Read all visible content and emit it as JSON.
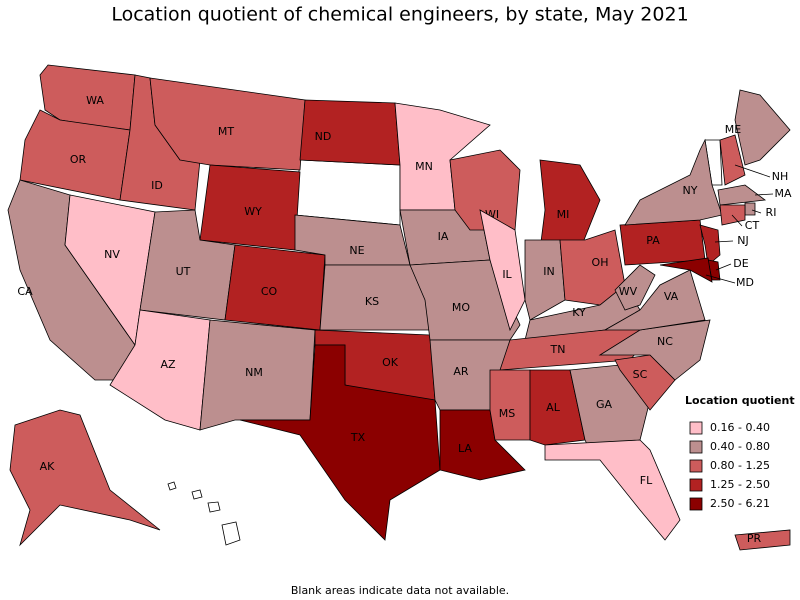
{
  "title": "Location quotient of chemical engineers, by state, May 2021",
  "legend": {
    "title": "Location quotient",
    "items": [
      {
        "label": "0.16 - 0.40",
        "color": "#ffbec8"
      },
      {
        "label": "0.40 - 0.80",
        "color": "#bc8f8f"
      },
      {
        "label": "0.80 - 1.25",
        "color": "#cd5c5c"
      },
      {
        "label": "1.25 - 2.50",
        "color": "#b22222"
      },
      {
        "label": "2.50 - 6.21",
        "color": "#8b0000"
      }
    ]
  },
  "states": [
    {
      "label": "WA",
      "color": "#cd5c5c"
    },
    {
      "label": "OR",
      "color": "#cd5c5c"
    },
    {
      "label": "CA",
      "color": "#bc8f8f"
    },
    {
      "label": "NV",
      "color": "#ffbec8"
    },
    {
      "label": "ID",
      "color": "#cd5c5c"
    },
    {
      "label": "MT",
      "color": "#cd5c5c"
    },
    {
      "label": "WY",
      "color": "#b22222"
    },
    {
      "label": "UT",
      "color": "#bc8f8f"
    },
    {
      "label": "CO",
      "color": "#b22222"
    },
    {
      "label": "AZ",
      "color": "#ffbec8"
    },
    {
      "label": "NM",
      "color": "#bc8f8f"
    },
    {
      "label": "ND",
      "color": "#b22222"
    },
    {
      "label": "NE",
      "color": "#bc8f8f"
    },
    {
      "label": "KS",
      "color": "#bc8f8f"
    },
    {
      "label": "OK",
      "color": "#b22222"
    },
    {
      "label": "TX",
      "color": "#8b0000"
    },
    {
      "label": "MN",
      "color": "#ffbec8"
    },
    {
      "label": "IA",
      "color": "#bc8f8f"
    },
    {
      "label": "MO",
      "color": "#bc8f8f"
    },
    {
      "label": "AR",
      "color": "#bc8f8f"
    },
    {
      "label": "LA",
      "color": "#8b0000"
    },
    {
      "label": "WI",
      "color": "#cd5c5c"
    },
    {
      "label": "IL",
      "color": "#ffbec8"
    },
    {
      "label": "MI",
      "color": "#b22222"
    },
    {
      "label": "IN",
      "color": "#bc8f8f"
    },
    {
      "label": "OH",
      "color": "#cd5c5c"
    },
    {
      "label": "KY",
      "color": "#bc8f8f"
    },
    {
      "label": "TN",
      "color": "#cd5c5c"
    },
    {
      "label": "MS",
      "color": "#cd5c5c"
    },
    {
      "label": "AL",
      "color": "#b22222"
    },
    {
      "label": "GA",
      "color": "#bc8f8f"
    },
    {
      "label": "FL",
      "color": "#ffbec8"
    },
    {
      "label": "SC",
      "color": "#cd5c5c"
    },
    {
      "label": "NC",
      "color": "#bc8f8f"
    },
    {
      "label": "VA",
      "color": "#bc8f8f"
    },
    {
      "label": "WV",
      "color": "#bc8f8f"
    },
    {
      "label": "PA",
      "color": "#b22222"
    },
    {
      "label": "NY",
      "color": "#bc8f8f"
    },
    {
      "label": "ME",
      "color": "#bc8f8f"
    },
    {
      "label": "NH",
      "color": "#cd5c5c"
    },
    {
      "label": "MA",
      "color": "#bc8f8f"
    },
    {
      "label": "RI",
      "color": "#bc8f8f"
    },
    {
      "label": "CT",
      "color": "#cd5c5c"
    },
    {
      "label": "NJ",
      "color": "#b22222"
    },
    {
      "label": "DE",
      "color": "#8b0000"
    },
    {
      "label": "MD",
      "color": "#8b0000"
    },
    {
      "label": "AK",
      "color": "#cd5c5c"
    },
    {
      "label": "PR",
      "color": "#cd5c5c"
    }
  ],
  "note": "Blank areas indicate data not available."
}
